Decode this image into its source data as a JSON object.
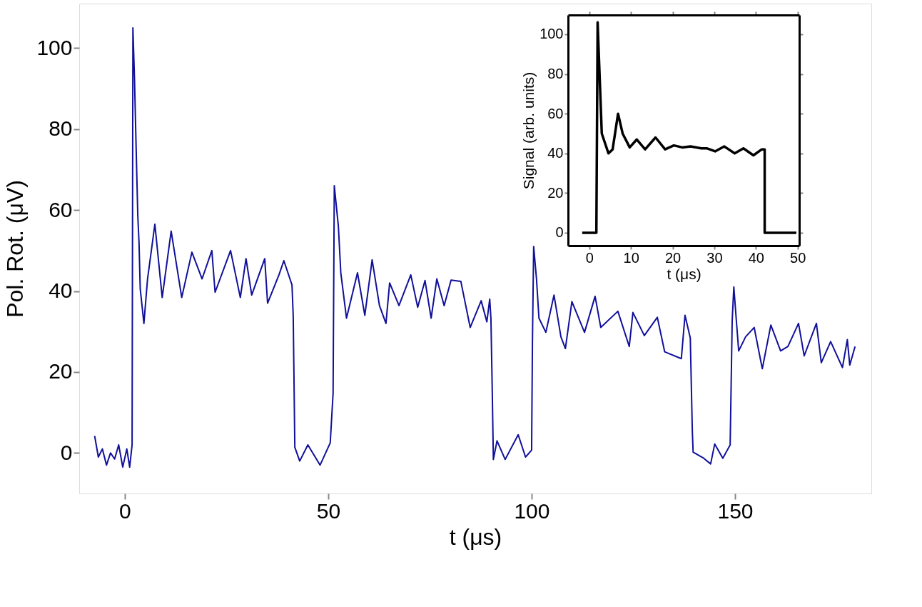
{
  "chart_data": [
    {
      "type": "line",
      "xlabel": "t (μs)",
      "ylabel": "Pol. Rot. (μV)",
      "xlim": [
        -11.2,
        183.5
      ],
      "ylim": [
        -10,
        111
      ],
      "xticks": [
        0,
        50,
        100,
        150
      ],
      "yticks": [
        0,
        20,
        40,
        60,
        80,
        100
      ],
      "grid": false,
      "series": [
        {
          "color": "#10109a",
          "x": [
            -7.4,
            -6.5,
            -5.5,
            -4.5,
            -3.5,
            -2.5,
            -1.5,
            -0.5,
            0.5,
            1.2,
            1.8,
            2.0,
            2.4,
            2.8,
            3.2,
            3.5,
            3.8,
            4.7,
            5.6,
            7.4,
            9.2,
            11.4,
            14,
            16.5,
            19,
            21.4,
            22.2,
            26,
            28.4,
            29.8,
            31.2,
            34.4,
            35.1,
            37.9,
            39.1,
            41.1,
            41.4,
            41.8,
            43,
            45,
            48,
            50.5,
            51.2,
            51.5,
            52.5,
            53.1,
            54.5,
            57.2,
            59,
            60.8,
            62.6,
            64.2,
            65.1,
            67.4,
            70.3,
            72,
            73.8,
            75.3,
            76.7,
            78.5,
            80.2,
            82.6,
            84.9,
            87.6,
            89,
            89.7,
            90,
            90.3,
            90.6,
            91.5,
            93.5,
            96.7,
            98.5,
            100,
            100.2,
            100.5,
            101.2,
            101.8,
            103.5,
            105.5,
            107.2,
            108.3,
            109.9,
            113,
            115.6,
            117,
            121.2,
            124,
            124.9,
            127.7,
            130.9,
            132.7,
            136.8,
            137.7,
            139,
            139.5,
            139.7,
            142.3,
            144,
            145,
            147,
            148.8,
            149.3,
            149.7,
            150.3,
            150.9,
            152.6,
            154.7,
            156.7,
            158.8,
            161.2,
            163,
            165.6,
            167,
            170,
            171.2,
            173.5,
            176.4,
            177.6,
            178.2,
            179.5
          ],
          "values": [
            4.2,
            -1,
            1,
            -3,
            0,
            -1.5,
            2,
            -3.5,
            1,
            -3.5,
            2,
            105,
            92,
            75,
            58.6,
            52,
            40.5,
            32,
            43,
            56.5,
            38.4,
            54.8,
            38.4,
            49.6,
            43,
            50,
            39.7,
            50,
            38.4,
            48,
            39,
            48,
            37,
            44,
            47.5,
            41.5,
            33.9,
            1.4,
            -2,
            2,
            -3,
            2.5,
            14.7,
            66,
            56,
            44.5,
            33.3,
            44.5,
            34,
            47.7,
            36.4,
            32,
            42,
            36.4,
            44,
            36,
            42.6,
            33.3,
            43,
            36.4,
            42.7,
            42.4,
            31,
            37.6,
            32.4,
            38,
            33.2,
            16.7,
            -1.6,
            3,
            -1.6,
            4.5,
            -1,
            0.7,
            27,
            51,
            43,
            33.3,
            29.8,
            39,
            28.7,
            25.8,
            37.4,
            29.8,
            38.7,
            31,
            35,
            26.3,
            34.7,
            29,
            33.5,
            25,
            23.3,
            34,
            28.4,
            5.4,
            0.2,
            -1.3,
            -2.7,
            2.2,
            -1.3,
            2,
            32.7,
            41,
            33,
            25.2,
            28.7,
            31,
            20.8,
            31.6,
            25.2,
            26.3,
            32,
            24,
            32,
            22.3,
            27.5,
            21.1,
            28,
            21.7,
            26.3
          ]
        }
      ]
    },
    {
      "type": "line",
      "xlabel": "t (μs)",
      "ylabel": "Signal (arb. units)",
      "xlim": [
        -5.1,
        50.4
      ],
      "ylim": [
        -6.5,
        109.7
      ],
      "xticks": [
        0,
        10,
        20,
        30,
        40,
        50
      ],
      "yticks": [
        0,
        20,
        40,
        60,
        80,
        100
      ],
      "grid": false,
      "series": [
        {
          "color": "#000000",
          "x": [
            -1.7,
            1.7,
            2.0,
            3.0,
            4.6,
            5.6,
            6.9,
            8.0,
            9.7,
            11.4,
            13.4,
            15.9,
            18.2,
            20.3,
            22.3,
            24.3,
            26.9,
            28.3,
            30.2,
            32.4,
            34.9,
            37,
            39.4,
            41.4,
            42.1,
            42.1,
            49.7
          ],
          "values": [
            0,
            0,
            106,
            50,
            40,
            42,
            60,
            50,
            43,
            47,
            42,
            48,
            42,
            44,
            43,
            43.5,
            42.5,
            42.5,
            41,
            43.5,
            40,
            42.5,
            39,
            42,
            42,
            0,
            0
          ]
        }
      ]
    }
  ]
}
